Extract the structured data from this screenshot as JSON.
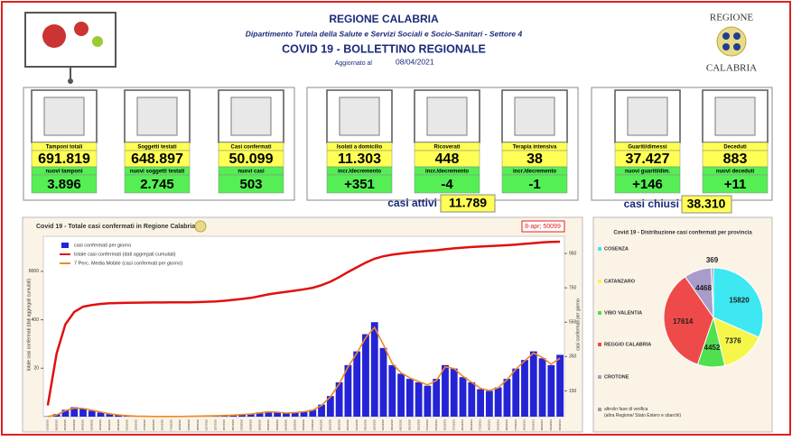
{
  "header": {
    "region": "REGIONE CALABRIA",
    "department": "Dipartimento Tutela della Salute e Servizi Sociali e Socio-Sanitari - Settore 4",
    "title": "COVID 19 - BOLLETTINO REGIONALE",
    "updated_label": "Aggiornato al",
    "updated_date": "08/04/2021",
    "logo_top": "REGIONE",
    "logo_bottom": "CALABRIA"
  },
  "stats": [
    {
      "label": "Tamponi totali",
      "value": "691.819",
      "sub_label": "nuovi tamponi",
      "sub_value": "3.896"
    },
    {
      "label": "Soggetti testati",
      "value": "648.897",
      "sub_label": "nuovi soggetti testati",
      "sub_value": "2.745"
    },
    {
      "label": "Casi confermati",
      "value": "50.099",
      "sub_label": "nuovi casi",
      "sub_value": "503"
    },
    {
      "label": "Isolati a domicilio",
      "value": "11.303",
      "sub_label": "incr./decremento",
      "sub_value": "+351"
    },
    {
      "label": "Ricoverati",
      "value": "448",
      "sub_label": "incr./decremento",
      "sub_value": "-4"
    },
    {
      "label": "Terapia intensiva",
      "value": "38",
      "sub_label": "incr./decremento",
      "sub_value": "-1"
    },
    {
      "label": "Guariti/dimessi",
      "value": "37.427",
      "sub_label": "nuovi guariti/dim.",
      "sub_value": "+146"
    },
    {
      "label": "Deceduti",
      "value": "883",
      "sub_label": "nuovi deceduti",
      "sub_value": "+11"
    }
  ],
  "summary": {
    "active_label": "casi attivi",
    "active_value": "11.789",
    "closed_label": "casi chiusi",
    "closed_value": "38.310"
  },
  "chart_data": [
    {
      "type": "combo",
      "title": "Covid 19 - Totale casi confermati in Regione Calabria",
      "annotation": "8-apr; 50099",
      "ylabel": "totale casi confermati (dati aggregati cumulati)",
      "y2label": "casi confermati per giorno",
      "categories": [
        "01/03/2020",
        "08/03/2020",
        "15/03/2020",
        "22/03/2020",
        "29/03/2020",
        "05/04/2020",
        "12/04/2020",
        "19/04/2020",
        "26/04/2020",
        "03/05/2020",
        "10/05/2020",
        "17/05/2020",
        "24/05/2020",
        "31/05/2020",
        "07/06/2020",
        "14/06/2020",
        "21/06/2020",
        "28/06/2020",
        "05/07/2020",
        "12/07/2020",
        "19/07/2020",
        "26/07/2020",
        "02/08/2020",
        "09/08/2020",
        "16/08/2020",
        "23/08/2020",
        "30/08/2020",
        "06/09/2020",
        "13/09/2020",
        "20/09/2020",
        "27/09/2020",
        "04/10/2020",
        "11/10/2020",
        "18/10/2020",
        "25/10/2020",
        "01/11/2020",
        "08/11/2020",
        "15/11/2020",
        "22/11/2020",
        "29/11/2020",
        "06/12/2020",
        "13/12/2020",
        "20/12/2020",
        "27/12/2020",
        "03/01/2021",
        "10/01/2021",
        "17/01/2021",
        "24/01/2021",
        "31/01/2021",
        "07/02/2021",
        "14/02/2021",
        "21/02/2021",
        "28/02/2021",
        "07/03/2021",
        "14/03/2021",
        "21/03/2021",
        "28/03/2021",
        "04/04/2021",
        "08/04/2021"
      ],
      "ylim": [
        1,
        70000
      ],
      "log": true,
      "yticks": [
        20,
        400,
        8000
      ],
      "y2lim": [
        0,
        1050
      ],
      "y2ticks": [
        150,
        350,
        550,
        750,
        950
      ],
      "series": [
        {
          "name": "casi confermati per giorno",
          "type": "bar",
          "axis": "y2",
          "color": "#2424d6",
          "values": [
            2,
            15,
            40,
            55,
            45,
            35,
            25,
            15,
            8,
            5,
            3,
            2,
            1,
            1,
            1,
            1,
            2,
            3,
            4,
            5,
            8,
            10,
            12,
            15,
            25,
            30,
            25,
            20,
            25,
            30,
            40,
            70,
            120,
            200,
            300,
            380,
            480,
            550,
            400,
            300,
            250,
            220,
            200,
            180,
            220,
            300,
            280,
            230,
            200,
            160,
            150,
            170,
            220,
            280,
            330,
            380,
            340,
            300,
            360
          ]
        },
        {
          "name": "totale casi confermati (dati aggregati cumulati)",
          "type": "line",
          "color": "#e01010",
          "values": [
            2,
            50,
            300,
            650,
            900,
            1000,
            1070,
            1110,
            1130,
            1145,
            1155,
            1160,
            1165,
            1168,
            1170,
            1172,
            1180,
            1195,
            1220,
            1250,
            1300,
            1370,
            1450,
            1550,
            1720,
            1930,
            2100,
            2250,
            2420,
            2630,
            2900,
            3400,
            4200,
            5600,
            7700,
            10300,
            13700,
            17500,
            20300,
            22400,
            24100,
            25600,
            27000,
            28200,
            29500,
            31400,
            33200,
            34700,
            36000,
            37100,
            38100,
            39200,
            40400,
            41900,
            43800,
            45900,
            47800,
            49400,
            50099
          ]
        },
        {
          "name": "7 Perc. Media Mobile (casi confermati per giorno)",
          "type": "line",
          "axis": "y2",
          "color": "#f08a24",
          "values": [
            1,
            10,
            35,
            50,
            48,
            38,
            27,
            17,
            10,
            6,
            3,
            2,
            1,
            1,
            1,
            1,
            2,
            3,
            4,
            5,
            7,
            9,
            12,
            15,
            22,
            28,
            26,
            21,
            24,
            29,
            38,
            65,
            115,
            190,
            290,
            370,
            460,
            520,
            420,
            310,
            255,
            225,
            205,
            185,
            210,
            290,
            280,
            235,
            200,
            165,
            152,
            168,
            215,
            275,
            325,
            370,
            345,
            305,
            340
          ]
        }
      ]
    },
    {
      "type": "pie",
      "title": "Covid 19 - Distribuzione casi confermati per provincia",
      "categories": [
        "COSENZA",
        "CATANZARO",
        "VIBO VALENTIA",
        "REGGIO CALABRIA",
        "CROTONE",
        "altro/in fase di verifica (altra Regione/ Stato Estero e sbarchi)"
      ],
      "values": [
        15820,
        7376,
        4452,
        17614,
        4468,
        369
      ],
      "colors": [
        "#3de8f2",
        "#f6f64a",
        "#4fe04f",
        "#ef4a4a",
        "#a99ccb",
        "#9aa0a8"
      ]
    }
  ]
}
